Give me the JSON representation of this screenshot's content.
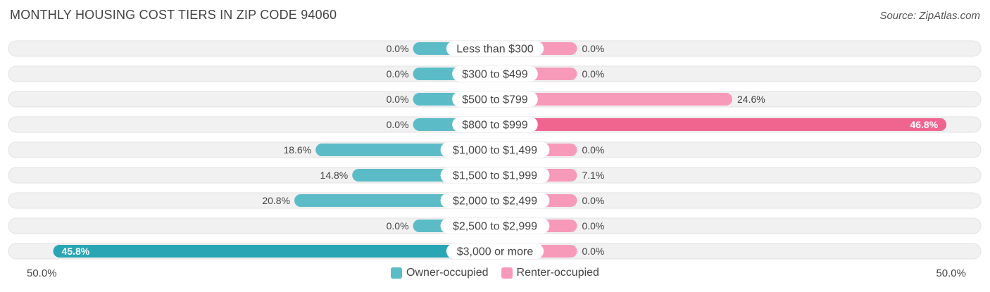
{
  "title": "MONTHLY HOUSING COST TIERS IN ZIP CODE 94060",
  "source": "Source: ZipAtlas.com",
  "colors": {
    "owner": "#5bbcc8",
    "owner_strong": "#2aa5b4",
    "renter": "#f79ab9",
    "renter_strong": "#f06590",
    "track": "#f1f1f1"
  },
  "chart_data": {
    "type": "bar",
    "orientation": "diverging-horizontal",
    "categories": [
      "Less than $300",
      "$300 to $499",
      "$500 to $799",
      "$800 to $999",
      "$1,000 to $1,499",
      "$1,500 to $1,999",
      "$2,000 to $2,499",
      "$2,500 to $2,999",
      "$3,000 or more"
    ],
    "series": [
      {
        "name": "Owner-occupied",
        "values": [
          0.0,
          0.0,
          0.0,
          0.0,
          18.6,
          14.8,
          20.8,
          0.0,
          45.8
        ],
        "labels": [
          "0.0%",
          "0.0%",
          "0.0%",
          "0.0%",
          "18.6%",
          "14.8%",
          "20.8%",
          "0.0%",
          "45.8%"
        ]
      },
      {
        "name": "Renter-occupied",
        "values": [
          0.0,
          0.0,
          24.6,
          46.8,
          0.0,
          7.1,
          0.0,
          0.0,
          0.0
        ],
        "labels": [
          "0.0%",
          "0.0%",
          "24.6%",
          "46.8%",
          "0.0%",
          "7.1%",
          "0.0%",
          "0.0%",
          "0.0%"
        ]
      }
    ],
    "xlim": [
      -50,
      50
    ],
    "axis_labels": {
      "left": "50.0%",
      "right": "50.0%"
    },
    "legend_position": "bottom-center"
  }
}
